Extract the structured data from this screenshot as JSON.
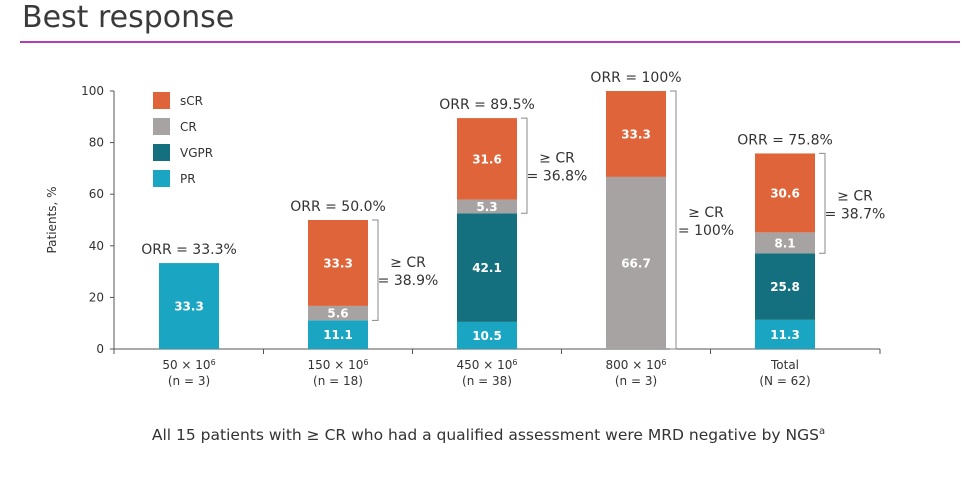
{
  "page": {
    "title": "Best response",
    "footnote": "All 15 patients with ≥ CR who had a qualified assessment were MRD negative by NGS",
    "footnote_sup": "a"
  },
  "colors": {
    "sCR": "#e0643a",
    "CR": "#a8a3a3",
    "VGPR": "#14707e",
    "PR": "#1aa5c3",
    "rule": "#b03fb5"
  },
  "chart_data": {
    "type": "bar",
    "stacked": true,
    "ylabel": "Patients, %",
    "ylim": [
      0,
      100
    ],
    "yticks": [
      0,
      20,
      40,
      60,
      80,
      100
    ],
    "grid": false,
    "legend": "top-left",
    "categories": [
      {
        "line1": "50 × 10",
        "sup": "6",
        "line2": "(n = 3)"
      },
      {
        "line1": "150 × 10",
        "sup": "6",
        "line2": "(n = 18)"
      },
      {
        "line1": "450 × 10",
        "sup": "6",
        "line2": "(n = 38)"
      },
      {
        "line1": "800 × 10",
        "sup": "6",
        "line2": "(n = 3)"
      },
      {
        "line1": "Total",
        "sup": "",
        "line2": "(N = 62)"
      }
    ],
    "series": [
      {
        "name": "PR",
        "values": [
          33.3,
          11.1,
          10.5,
          0,
          11.3
        ]
      },
      {
        "name": "VGPR",
        "values": [
          0,
          0,
          42.1,
          0,
          25.8
        ]
      },
      {
        "name": "CR",
        "values": [
          0,
          5.6,
          5.3,
          66.7,
          8.1
        ]
      },
      {
        "name": "sCR",
        "values": [
          0,
          33.3,
          31.6,
          33.3,
          30.6
        ]
      }
    ],
    "legend_order": [
      "sCR",
      "CR",
      "VGPR",
      "PR"
    ],
    "orr_labels": [
      "ORR = 33.3%",
      "ORR = 50.0%",
      "ORR = 89.5%",
      "ORR = 100%",
      "ORR = 75.8%"
    ],
    "cr_brackets": [
      null,
      {
        "line1": "≥ CR",
        "line2": "= 38.9%"
      },
      {
        "line1": "≥ CR",
        "line2": "= 36.8%"
      },
      {
        "line1": "≥ CR",
        "line2": "= 100%"
      },
      {
        "line1": "≥ CR",
        "line2": "= 38.7%"
      }
    ]
  }
}
